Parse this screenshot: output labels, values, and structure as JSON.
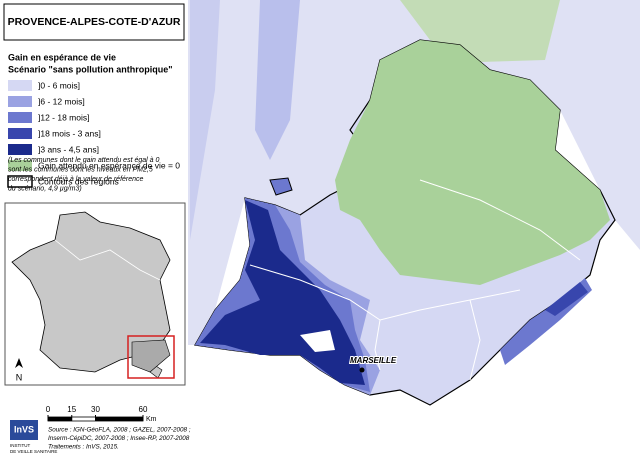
{
  "title": "PROVENCE-ALPES-COTE-D'AZUR",
  "legend": {
    "title_lines": [
      "Gain en espérance de vie",
      "Scénario \"sans pollution anthropique\""
    ],
    "items": [
      {
        "label": "]0 - 6 mois]",
        "color": "#d5d8f3"
      },
      {
        "label": "]6 - 12 mois]",
        "color": "#9aa2e2"
      },
      {
        "label": "]12 - 18 mois]",
        "color": "#6c78cf"
      },
      {
        "label": "]18 mois - 3 ans]",
        "color": "#3846ad"
      },
      {
        "label": "]3 ans - 4,5 ans]",
        "color": "#1b2a8c"
      },
      {
        "label": "Gain attendu en espérance de vie = 0",
        "color": "#a9d19a"
      },
      {
        "label": "Contours des régions",
        "color": "#ffffff"
      }
    ]
  },
  "note_lines": [
    "(Les communes dont le gain attendu est égal à 0",
    "sont les communes dont les niveaux en PM2,5",
    "correspondent déjà à la valeur de référence",
    "du scénario, 4,9 µg/m3)"
  ],
  "city_label": "MARSEILLE",
  "north_label": "N",
  "scale_bar": {
    "ticks": [
      0,
      15,
      30,
      60
    ],
    "unit": "Km"
  },
  "logo": {
    "name": "InVS",
    "subtitle_lines": [
      "INSTITUT",
      "DE VEILLE SANITAIRE"
    ]
  },
  "source_lines": [
    "Source : IGN-GéoFLA, 2008 ; GAZEL, 2007-2008 ;",
    "Inserm-CépiDC, 2007-2008 ; Insee-RP, 2007-2008",
    "Traitements : InVS, 2015."
  ]
}
